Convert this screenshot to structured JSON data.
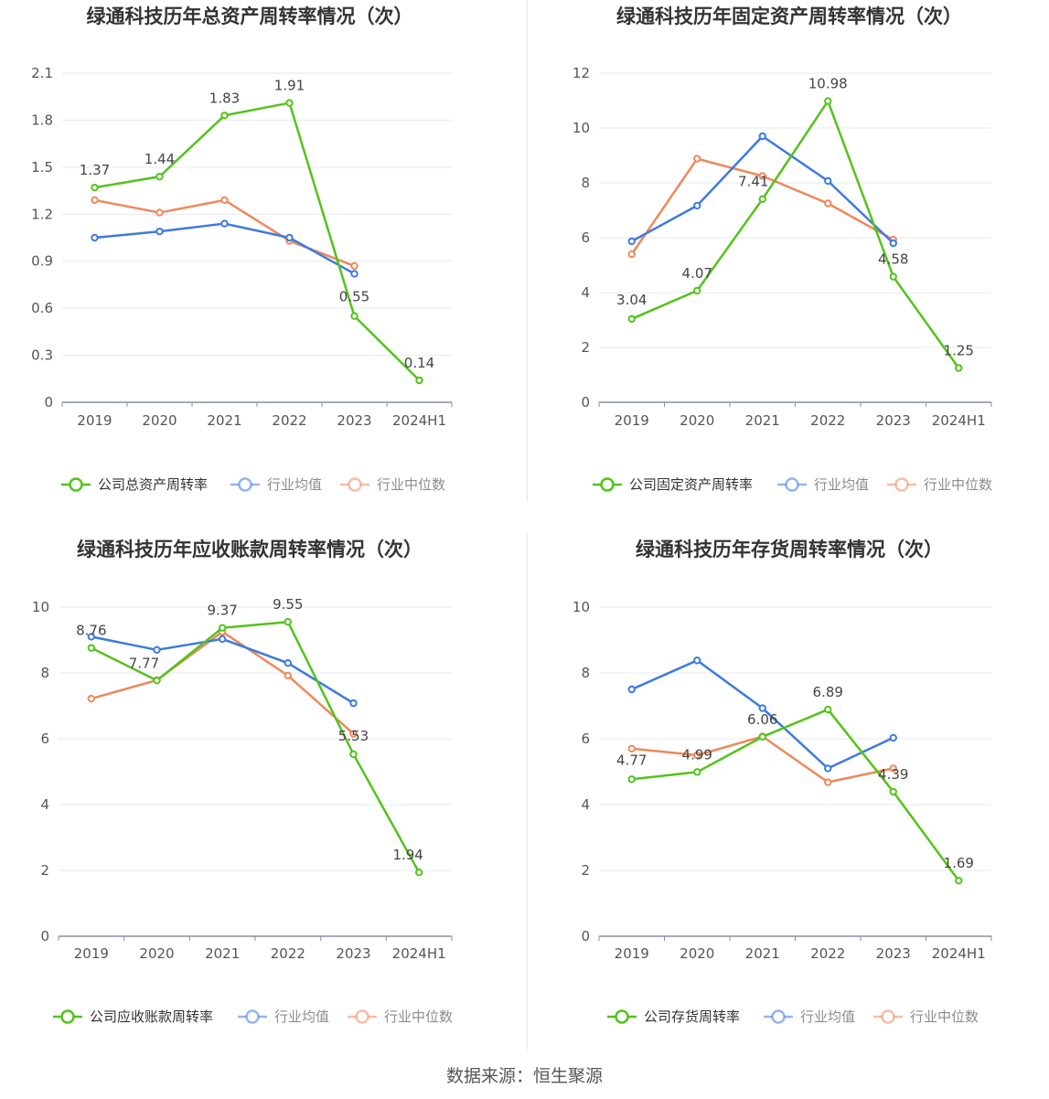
{
  "colors": {
    "company": "#52c41a",
    "avg": "#3d7ae0",
    "median": "#f0885a",
    "grid": "#e6e9f0",
    "axis": "#8a8fa3",
    "title": "#333333",
    "text": "#555555"
  },
  "footer": {
    "source": "数据来源：恒生聚源"
  },
  "chart_data": [
    {
      "type": "line",
      "title": "绿通科技历年总资产周转率情况（次）",
      "categories": [
        "2019",
        "2020",
        "2021",
        "2022",
        "2023",
        "2024H1"
      ],
      "ylim": [
        0,
        2.1
      ],
      "yticks": [
        "0",
        "0.3",
        "0.6",
        "0.9",
        "1.2",
        "1.5",
        "1.8",
        "2.1"
      ],
      "yticks_values": [
        0,
        0.3,
        0.6,
        0.9,
        1.2,
        1.5,
        1.8,
        2.1
      ],
      "series": [
        {
          "name": "公司总资产周转率",
          "key": "company",
          "values": [
            1.37,
            1.44,
            1.83,
            1.91,
            0.55,
            0.14
          ],
          "labels": [
            "1.37",
            "1.44",
            "1.83",
            "1.91",
            "0.55",
            "0.14"
          ]
        },
        {
          "name": "行业均值",
          "key": "avg",
          "values": [
            1.05,
            1.09,
            1.14,
            1.05,
            0.82,
            null
          ]
        },
        {
          "name": "行业中位数",
          "key": "median",
          "values": [
            1.29,
            1.21,
            1.29,
            1.03,
            0.87,
            null
          ]
        }
      ]
    },
    {
      "type": "line",
      "title": "绿通科技历年固定资产周转率情况（次）",
      "categories": [
        "2019",
        "2020",
        "2021",
        "2022",
        "2023",
        "2024H1"
      ],
      "ylim": [
        0,
        12
      ],
      "yticks": [
        "0",
        "2",
        "4",
        "6",
        "8",
        "10",
        "12"
      ],
      "yticks_values": [
        0,
        2,
        4,
        6,
        8,
        10,
        12
      ],
      "series": [
        {
          "name": "公司固定资产周转率",
          "key": "company",
          "values": [
            3.04,
            4.07,
            7.41,
            10.98,
            4.58,
            1.25
          ],
          "labels": [
            "3.04",
            "4.07",
            "7.41",
            "10.98",
            "4.58",
            "1.25"
          ]
        },
        {
          "name": "行业均值",
          "key": "avg",
          "values": [
            5.87,
            7.17,
            9.7,
            8.07,
            5.8,
            null
          ]
        },
        {
          "name": "行业中位数",
          "key": "median",
          "values": [
            5.4,
            8.88,
            8.25,
            7.25,
            5.93,
            null
          ]
        }
      ]
    },
    {
      "type": "line",
      "title": "绿通科技历年应收账款周转率情况（次）",
      "categories": [
        "2019",
        "2020",
        "2021",
        "2022",
        "2023",
        "2024H1"
      ],
      "ylim": [
        0,
        10
      ],
      "yticks": [
        "0",
        "2",
        "4",
        "6",
        "8",
        "10"
      ],
      "yticks_values": [
        0,
        2,
        4,
        6,
        8,
        10
      ],
      "series": [
        {
          "name": "公司应收账款周转率",
          "key": "company",
          "values": [
            8.76,
            7.77,
            9.37,
            9.55,
            5.53,
            1.94
          ],
          "labels": [
            "8.76",
            "7.77",
            "9.37",
            "9.55",
            "5.53",
            "1.94"
          ]
        },
        {
          "name": "行业均值",
          "key": "avg",
          "values": [
            9.1,
            8.7,
            9.03,
            8.3,
            7.08,
            null
          ]
        },
        {
          "name": "行业中位数",
          "key": "median",
          "values": [
            7.22,
            7.78,
            9.25,
            7.92,
            6.15,
            null
          ]
        }
      ]
    },
    {
      "type": "line",
      "title": "绿通科技历年存货周转率情况（次）",
      "categories": [
        "2019",
        "2020",
        "2021",
        "2022",
        "2023",
        "2024H1"
      ],
      "ylim": [
        0,
        10
      ],
      "yticks": [
        "0",
        "2",
        "4",
        "6",
        "8",
        "10"
      ],
      "yticks_values": [
        0,
        2,
        4,
        6,
        8,
        10
      ],
      "series": [
        {
          "name": "公司存货周转率",
          "key": "company",
          "values": [
            4.77,
            4.99,
            6.06,
            6.89,
            4.39,
            1.69
          ],
          "labels": [
            "4.77",
            "4.99",
            "6.06",
            "6.89",
            "4.39",
            "1.69"
          ]
        },
        {
          "name": "行业均值",
          "key": "avg",
          "values": [
            7.5,
            8.38,
            6.93,
            5.1,
            6.03,
            null
          ]
        },
        {
          "name": "行业中位数",
          "key": "median",
          "values": [
            5.7,
            5.5,
            6.07,
            4.68,
            5.1,
            null
          ]
        }
      ]
    }
  ]
}
